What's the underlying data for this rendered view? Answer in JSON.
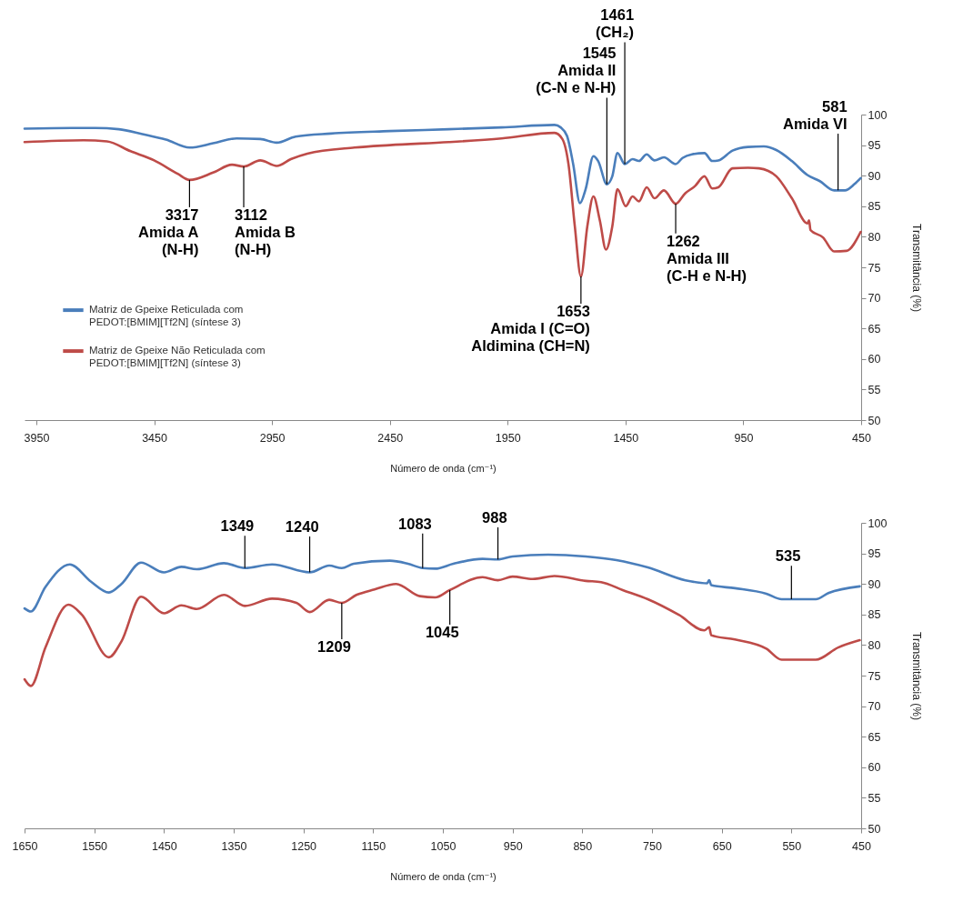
{
  "chart_data": [
    {
      "type": "line",
      "xlabel": "Número de onda (cm⁻¹)",
      "ylabel": "Transmitância (%)",
      "xlim": [
        4000,
        450
      ],
      "xticks": [
        3950,
        3450,
        2950,
        2450,
        1950,
        1450,
        950,
        450
      ],
      "ylim": [
        50,
        100
      ],
      "yticks": [
        50,
        55,
        60,
        65,
        70,
        75,
        80,
        85,
        90,
        95,
        100
      ],
      "grid": false,
      "legend": "left",
      "line_style": "solid",
      "series": [
        {
          "name": "Matriz de Gpeixe Reticulada com PEDOT:[BMIM][Tf2N] (síntese 3)",
          "color": "#4a7ebb",
          "x": [
            4000,
            3800,
            3700,
            3600,
            3500,
            3400,
            3300,
            3200,
            3100,
            3000,
            2930,
            2850,
            2700,
            2450,
            2200,
            1976,
            1751,
            1725,
            1698,
            1672,
            1643,
            1619,
            1586,
            1566,
            1529,
            1506,
            1484,
            1453,
            1420,
            1393,
            1360,
            1327,
            1287,
            1237,
            1208,
            1168,
            1115,
            1082,
            1056,
            996,
            930,
            863,
            810,
            744,
            678,
            625,
            565,
            519,
            479,
            452
          ],
          "values": [
            97.7,
            97.8,
            97.8,
            97.6,
            96.8,
            95.9,
            94.6,
            95.3,
            96.1,
            96.0,
            95.4,
            96.4,
            96.9,
            97.3,
            97.6,
            97.9,
            98.3,
            97.9,
            96.5,
            91.9,
            85.5,
            87.8,
            93.2,
            92.4,
            88.6,
            89.9,
            93.7,
            91.9,
            92.7,
            92.4,
            93.5,
            92.5,
            93.0,
            91.9,
            92.9,
            93.5,
            93.7,
            92.4,
            92.5,
            94.1,
            94.7,
            94.8,
            94.2,
            92.4,
            90.1,
            89.1,
            87.6,
            87.6,
            88.6,
            89.6
          ]
        },
        {
          "name": "Matriz de Gpeixe Não Reticulada com PEDOT:[BMIM][Tf2N] (síntese 3)",
          "color": "#be4b48",
          "x": [
            4000,
            3750,
            3650,
            3550,
            3450,
            3350,
            3300,
            3200,
            3120,
            3070,
            3000,
            2930,
            2870,
            2800,
            2600,
            2450,
            2200,
            1976,
            1751,
            1718,
            1692,
            1665,
            1639,
            1612,
            1586,
            1559,
            1533,
            1506,
            1484,
            1449,
            1420,
            1393,
            1360,
            1327,
            1287,
            1237,
            1197,
            1155,
            1115,
            1082,
            1056,
            996,
            930,
            883,
            810,
            744,
            678,
            671,
            665,
            612,
            565,
            512,
            452
          ],
          "values": [
            95.5,
            95.8,
            95.6,
            94.0,
            92.5,
            90.3,
            89.3,
            90.5,
            91.8,
            91.5,
            92.5,
            91.6,
            92.7,
            93.6,
            94.6,
            95.0,
            95.5,
            96.1,
            97.0,
            96.0,
            91.9,
            81.7,
            73.5,
            81.7,
            86.6,
            82.7,
            77.9,
            81.7,
            87.8,
            85.0,
            86.6,
            85.8,
            88.1,
            86.3,
            87.6,
            85.4,
            87.1,
            88.3,
            89.9,
            87.9,
            88.1,
            91.2,
            91.3,
            91.2,
            89.9,
            86.3,
            82.2,
            82.7,
            81.1,
            79.9,
            77.6,
            77.7,
            80.8
          ]
        }
      ],
      "annotations": [
        {
          "text": "3317\nAmida A\n(N-H)",
          "x": 3300,
          "y": 89.3
        },
        {
          "text": "3112\nAmida B\n(N-H)",
          "x": 3070,
          "y": 91.5
        },
        {
          "text": "1653\nAmida I (C=O)\nAldimina (CH=N)",
          "x": 1639,
          "y": 73.5
        },
        {
          "text": "1545\nAmida II\n(C-N e N-H)",
          "x": 1529,
          "y": 88.6
        },
        {
          "text": "1461\n(CH₂)",
          "x": 1453,
          "y": 91.9
        },
        {
          "text": "1262\nAmida III\n(C-H e N-H)",
          "x": 1237,
          "y": 85.4
        },
        {
          "text": "581\nAmida VI",
          "x": 548,
          "y": 87.6
        }
      ]
    },
    {
      "type": "line",
      "xlabel": "Número de onda (cm⁻¹)",
      "ylabel": "Transmitância (%)",
      "xlim": [
        1650,
        450
      ],
      "xticks": [
        1650,
        1550,
        1450,
        1350,
        1250,
        1150,
        1050,
        950,
        850,
        750,
        650,
        550,
        450
      ],
      "ylim": [
        50,
        100
      ],
      "yticks": [
        50,
        55,
        60,
        65,
        70,
        75,
        80,
        85,
        90,
        95,
        100
      ],
      "grid": false,
      "legend": "left",
      "line_style": "solid",
      "series": [
        {
          "name": "Matriz de Gpeixe Reticulada com PEDOT:[BMIM][Tf2N] (síntese 3)",
          "color": "#4a7ebb",
          "x": [
            1650,
            1641,
            1620,
            1585,
            1555,
            1529,
            1511,
            1483,
            1450,
            1425,
            1403,
            1364,
            1334,
            1295,
            1241,
            1213,
            1195,
            1178,
            1126,
            1100,
            1079,
            1061,
            1035,
            993,
            971,
            950,
            899,
            845,
            801,
            756,
            702,
            671,
            668,
            665,
            631,
            586,
            564,
            515,
            497,
            452
          ],
          "values": [
            86.0,
            85.5,
            89.5,
            93.2,
            90.4,
            88.6,
            90.0,
            93.5,
            91.9,
            92.8,
            92.4,
            93.4,
            92.6,
            93.2,
            91.9,
            93.0,
            92.6,
            93.3,
            93.8,
            93.3,
            92.6,
            92.5,
            93.3,
            94.1,
            94.0,
            94.5,
            94.8,
            94.5,
            93.9,
            92.7,
            90.6,
            90.1,
            90.6,
            89.8,
            89.3,
            88.4,
            87.5,
            87.5,
            88.5,
            89.6
          ]
        },
        {
          "name": "Matriz de Gpeixe Não Reticulada com PEDOT:[BMIM][Tf2N] (síntese 3)",
          "color": "#be4b48",
          "x": [
            1650,
            1641,
            1620,
            1587,
            1568,
            1529,
            1511,
            1483,
            1450,
            1425,
            1403,
            1364,
            1334,
            1295,
            1260,
            1241,
            1213,
            1195,
            1174,
            1148,
            1117,
            1083,
            1061,
            1040,
            993,
            971,
            950,
            921,
            890,
            845,
            823,
            792,
            756,
            711,
            675,
            668,
            665,
            631,
            586,
            564,
            515,
            483,
            452
          ],
          "values": [
            74.4,
            73.3,
            79.6,
            86.6,
            85.0,
            78.0,
            80.6,
            87.9,
            85.2,
            86.5,
            85.9,
            88.2,
            86.4,
            87.6,
            86.9,
            85.4,
            87.4,
            86.9,
            88.2,
            89.1,
            90.0,
            88.0,
            87.8,
            89.0,
            91.1,
            90.6,
            91.2,
            90.8,
            91.3,
            90.5,
            90.3,
            89.0,
            87.5,
            84.9,
            82.4,
            82.9,
            81.6,
            80.9,
            79.4,
            77.6,
            77.6,
            79.6,
            80.8
          ]
        }
      ],
      "annotations": [
        {
          "text": "1349",
          "x": 1334,
          "y": 92.6
        },
        {
          "text": "1240",
          "x": 1241,
          "y": 91.9
        },
        {
          "text": "1209",
          "x": 1195,
          "y": 86.9
        },
        {
          "text": "1083",
          "x": 1079,
          "y": 92.6
        },
        {
          "text": "1045",
          "x": 1040,
          "y": 89.0
        },
        {
          "text": "988",
          "x": 971,
          "y": 94.0
        },
        {
          "text": "535",
          "x": 550,
          "y": 87.5
        }
      ]
    }
  ]
}
